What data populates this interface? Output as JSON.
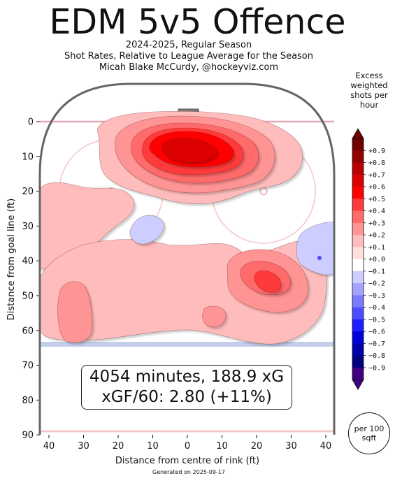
{
  "chart_data": {
    "type": "heatmap",
    "title": "EDM 5v5 Offence",
    "subtitle_lines": [
      "2024-2025, Regular Season",
      "Shot Rates, Relative to League Average for the Season",
      "Micah Blake McCurdy, @hockeyviz.com"
    ],
    "xlabel": "Distance from centre of rink (ft)",
    "ylabel": "Distance from goal line (ft)",
    "x_ticks": [
      "40",
      "30",
      "20",
      "10",
      "0",
      "10",
      "20",
      "30",
      "40"
    ],
    "x_tick_values": [
      -40,
      -30,
      -20,
      -10,
      0,
      10,
      20,
      30,
      40
    ],
    "y_ticks": [
      0,
      10,
      20,
      30,
      40,
      50,
      60,
      70,
      80,
      90
    ],
    "xlim": [
      -42.5,
      42.5
    ],
    "ylim": [
      90,
      -11
    ],
    "colorbar": {
      "title": "Excess weighted shots per hour",
      "ticks": [
        "+0.9",
        "+0.8",
        "+0.7",
        "+0.6",
        "+0.5",
        "+0.4",
        "+0.3",
        "+0.2",
        "+0.1",
        "+0.0",
        "−0.1",
        "−0.2",
        "−0.3",
        "−0.4",
        "−0.5",
        "−0.6",
        "−0.7",
        "−0.8",
        "−0.9"
      ],
      "colors": [
        "#6e0000",
        "#930000",
        "#b80000",
        "#dc0000",
        "#ff0000",
        "#ff3a3a",
        "#ff6a6a",
        "#ff9494",
        "#ffbcbc",
        "#ffdede",
        "#ffffff",
        "#cdcdff",
        "#a4a4ff",
        "#7a7aff",
        "#4d4dff",
        "#1d1dff",
        "#0000d8",
        "#0000ac",
        "#000080",
        "#400080"
      ],
      "unit_badge": "per 100 sqft"
    },
    "regions": [
      {
        "level": 0.1,
        "desc": "broad positive zone, slot and both circles",
        "center": [
          0,
          22
        ]
      },
      {
        "level": 0.2,
        "desc": "high slot lobe",
        "center": [
          0,
          9
        ]
      },
      {
        "level": 0.3,
        "desc": "slot",
        "center": [
          0,
          9
        ]
      },
      {
        "level": 0.4,
        "desc": "slot",
        "center": [
          0,
          9
        ]
      },
      {
        "level": 0.5,
        "desc": "slot peak",
        "center": [
          0,
          8
        ]
      },
      {
        "level": 0.6,
        "desc": "slot peak",
        "center": [
          0,
          8
        ]
      },
      {
        "level": 0.2,
        "desc": "right point area",
        "center": [
          24,
          44
        ]
      },
      {
        "level": 0.3,
        "desc": "right point peak",
        "center": [
          23,
          46
        ]
      },
      {
        "level": 0.2,
        "desc": "left point area",
        "center": [
          -34,
          54
        ]
      },
      {
        "level": 0.2,
        "desc": "centre point spot",
        "center": [
          7,
          57
        ]
      },
      {
        "level": -0.1,
        "desc": "left faceoff edge",
        "center": [
          -12,
          33
        ]
      },
      {
        "level": -0.1,
        "desc": "right boards",
        "center": [
          38,
          38
        ]
      }
    ],
    "summary": {
      "line1": "4054 minutes, 188.9 xG",
      "line2": "xGF/60: 2.80 (+11%)"
    }
  },
  "footer": "Generated on 2025-09-17"
}
